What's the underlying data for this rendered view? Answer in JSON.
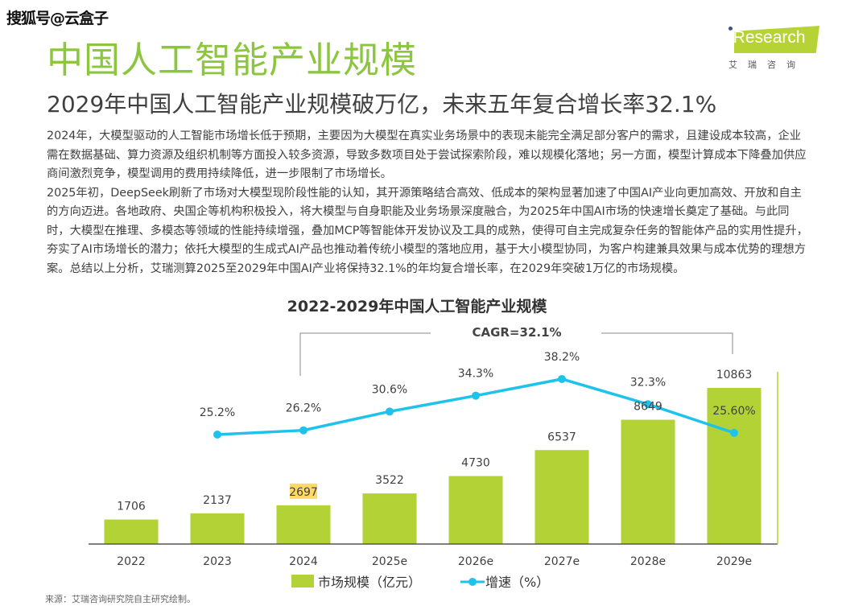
{
  "watermark": "搜狐号@云盒子",
  "header": {
    "title": "中国人工智能产业规模",
    "subtitle": "2029年中国人工智能产业规模破万亿，未来五年复合增长率32.1%",
    "logo_text": "iResearch",
    "logo_cn": "艾瑞咨询"
  },
  "body": {
    "paragraphs": [
      "2024年，大模型驱动的人工智能市场增长低于预期，主要因为大模型在真实业务场景中的表现未能完全满足部分客户的需求，且建设成本较高，企业需在数据基础、算力资源及组织机制等方面投入较多资源，导致多数项目处于尝试探索阶段，难以规模化落地；另一方面，模型计算成本下降叠加供应商间激烈竞争，模型调用的费用持续降低，进一步限制了市场增长。",
      "2025年初，DeepSeek刷新了市场对大模型现阶段性能的认知，其开源策略结合高效、低成本的架构显著加速了中国AI产业向更加高效、开放和自主的方向迈进。各地政府、央国企等机构积极投入，将大模型与自身职能及业务场景深度融合，为2025年中国AI市场的快速增长奠定了基础。与此同时，大模型在推理、多模态等领域的性能持续增强，叠加MCP等智能体开发协议及工具的成熟，使得可自主完成复杂任务的智能体产品的实用性提升，夯实了AI市场增长的潜力；依托大模型的生成式AI产品也推动着传统小模型的落地应用，基于大小模型协同，为客户构建兼具效果与成本优势的理想方案。总结以上分析，艾瑞测算2025至2029年中国AI产业将保持32.1%的年均复合增长率，在2029年突破1万亿的市场规模。"
    ]
  },
  "chart_data": {
    "type": "bar+line",
    "title": "2022-2029年中国人工智能产业规模",
    "annotation": "CAGR=32.1%",
    "categories": [
      "2022",
      "2023",
      "2024",
      "2025e",
      "2026e",
      "2027e",
      "2028e",
      "2029e"
    ],
    "series": [
      {
        "name": "市场规模（亿元）",
        "type": "bar",
        "color": "#b2d235",
        "values": [
          1706,
          2137,
          2697,
          3522,
          4730,
          6537,
          8649,
          10863
        ],
        "labels": [
          "1706",
          "2137",
          "2697",
          "3522",
          "4730",
          "6537",
          "8649",
          "10863"
        ]
      },
      {
        "name": "增速（%）",
        "type": "line",
        "color": "#1ec3ec",
        "values": [
          null,
          25.2,
          26.2,
          30.6,
          34.3,
          38.2,
          32.3,
          25.6
        ],
        "labels": [
          "",
          "25.2%",
          "26.2%",
          "30.6%",
          "34.3%",
          "38.2%",
          "32.3%",
          "25.60%"
        ]
      }
    ],
    "highlight_label_color": "#ffd966",
    "legend": "bottom",
    "grid": false
  },
  "source": "来源：艾瑞咨询研究院自主研究绘制。"
}
